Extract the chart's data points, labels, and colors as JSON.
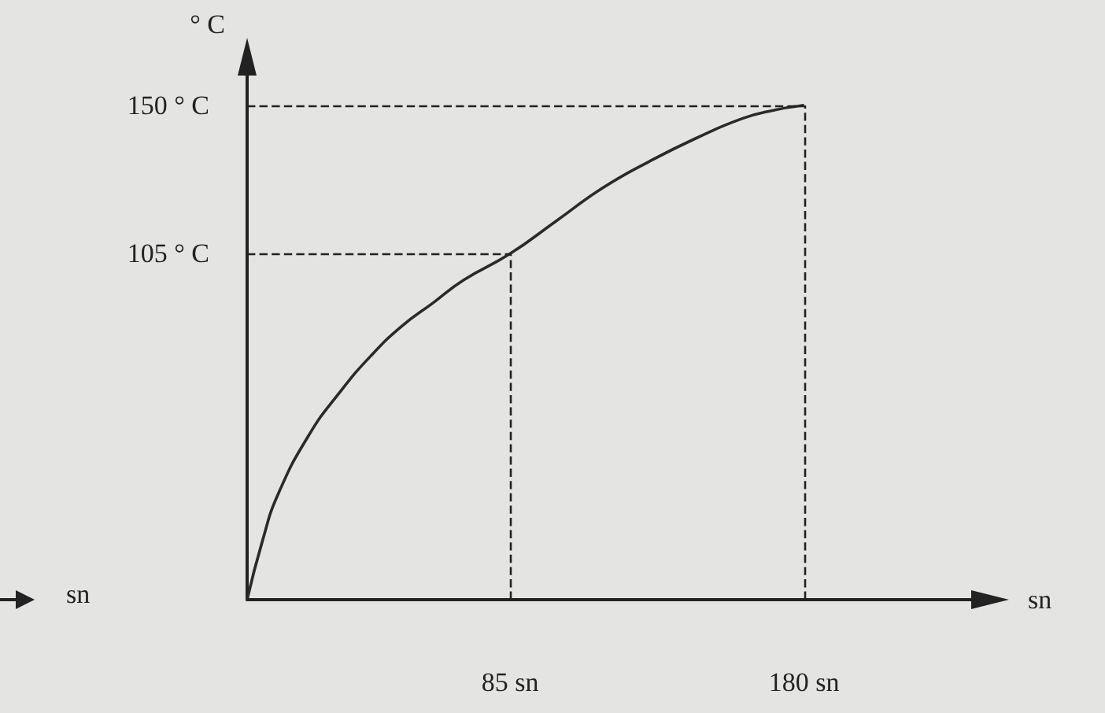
{
  "chart_data": {
    "type": "line",
    "xlabel": "sn",
    "ylabel": "° C",
    "x": [
      0,
      5,
      10,
      20,
      30,
      40,
      50,
      60,
      70,
      85,
      100,
      115,
      130,
      145,
      160,
      170,
      180
    ],
    "series": [
      {
        "color": "#2a2a2a",
        "values": [
          0,
          18,
          32,
          50,
          63,
          74,
          83,
          90,
          97,
          105,
          115,
          125,
          133,
          140,
          146,
          148.5,
          150
        ]
      }
    ],
    "xlim": [
      0,
      235
    ],
    "ylim": [
      0,
      160
    ],
    "xticks": [
      {
        "value": 85,
        "label": "85 sn"
      },
      {
        "value": 180,
        "label": "180 sn"
      }
    ],
    "yticks": [
      {
        "value": 105,
        "label": "105 ° C"
      },
      {
        "value": 150,
        "label": "150 ° C"
      }
    ],
    "ref_lines": [
      {
        "axis": "y",
        "value": 105,
        "line_style": "dashed"
      },
      {
        "axis": "x",
        "value": 85,
        "line_style": "dashed"
      },
      {
        "axis": "y",
        "value": 150,
        "line_style": "dashed"
      },
      {
        "axis": "x",
        "value": 180,
        "line_style": "dashed"
      }
    ],
    "annotations": [
      "sn"
    ],
    "grid": false,
    "marker": "none",
    "line_style": "solid"
  }
}
